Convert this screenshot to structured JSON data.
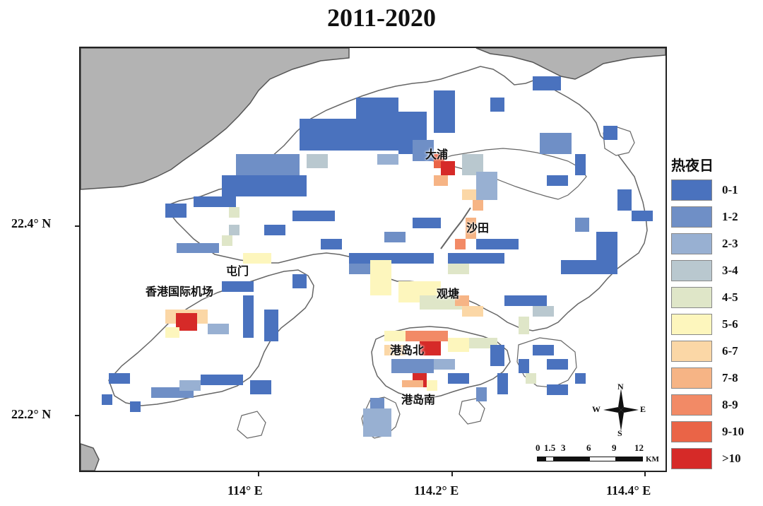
{
  "title": "2011-2020",
  "axes": {
    "lat_labels": [
      "22.4° N",
      "22.2° N"
    ],
    "lon_labels": [
      "114° E",
      "114.2° E",
      "114.4° E"
    ]
  },
  "places": [
    {
      "id": "tai-po",
      "name": "大浦"
    },
    {
      "id": "sha-tin",
      "name": "沙田"
    },
    {
      "id": "tuen-mun",
      "name": "屯门"
    },
    {
      "id": "airport",
      "name": "香港国际机场"
    },
    {
      "id": "kwun-tong",
      "name": "观塘"
    },
    {
      "id": "hk-island-north",
      "name": "港岛北"
    },
    {
      "id": "hk-island-south",
      "name": "港岛南"
    }
  ],
  "legend": {
    "title": "热夜日",
    "items": [
      {
        "label": "0-1",
        "color": "#4a72be"
      },
      {
        "label": "1-2",
        "color": "#6f8fc6"
      },
      {
        "label": "2-3",
        "color": "#98b0d2"
      },
      {
        "label": "3-4",
        "color": "#b9c8cf"
      },
      {
        "label": "4-5",
        "color": "#dfe6c8"
      },
      {
        "label": "5-6",
        "color": "#fdf6bd"
      },
      {
        "label": "6-7",
        "color": "#fbd7a6"
      },
      {
        "label": "7-8",
        "color": "#f6b485"
      },
      {
        "label": "8-9",
        "color": "#f28a66"
      },
      {
        "label": "9-10",
        "color": "#ea6447"
      },
      {
        "label": ">10",
        "color": "#d62a28"
      }
    ]
  },
  "compass": {
    "n": "N",
    "s": "S",
    "e": "E",
    "w": "W"
  },
  "scale_bar": {
    "ticks": [
      "0",
      "1.5",
      "3",
      "6",
      "9",
      "12"
    ],
    "unit": "KM"
  },
  "colors": {
    "mainland": "#b3b3b3",
    "coast": "#666666",
    "land": "#ffffff"
  }
}
